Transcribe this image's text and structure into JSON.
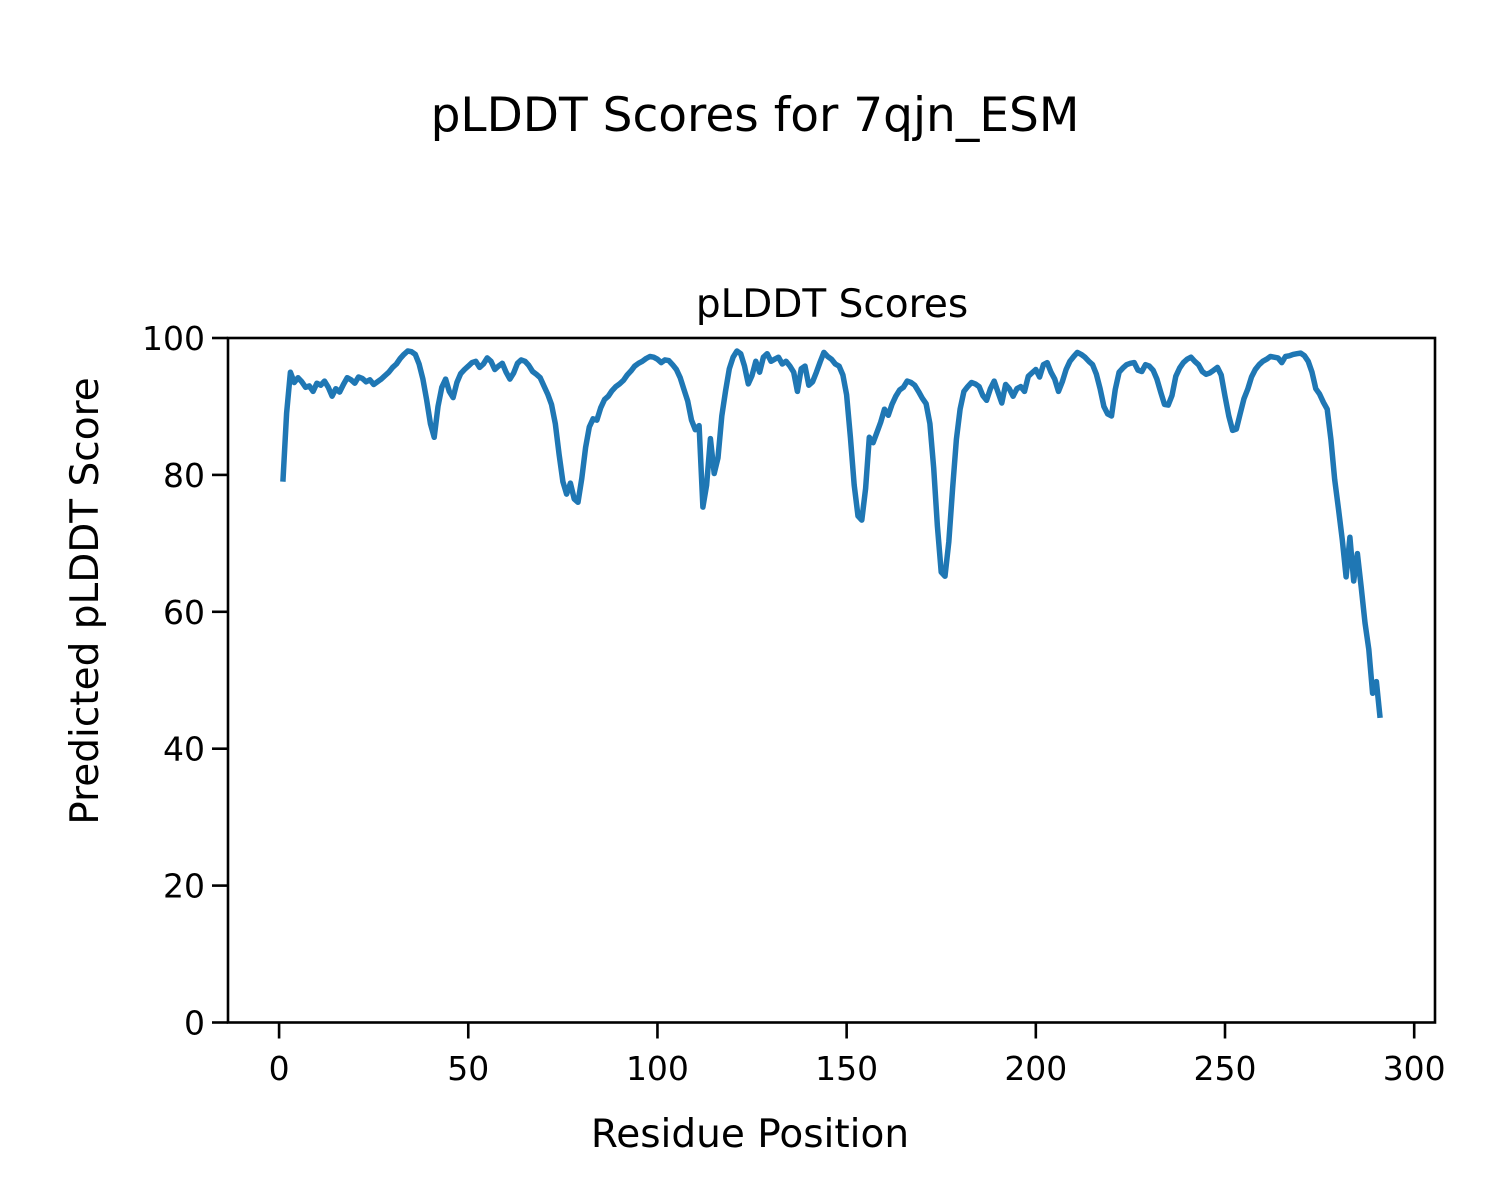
{
  "figure": {
    "suptitle": "pLDDT Scores for 7qjn_ESM",
    "background": "#ffffff",
    "text_color": "#000000",
    "spine_color": "#000000"
  },
  "chart_data": {
    "type": "line",
    "suptitle": "pLDDT Scores for 7qjn_ESM",
    "title": "pLDDT Scores",
    "xlabel": "Residue Position",
    "ylabel": "Predicted pLDDT Score",
    "xlim": [
      -13.5,
      305.5
    ],
    "ylim": [
      0,
      100
    ],
    "xticks": [
      0,
      50,
      100,
      150,
      200,
      250,
      300
    ],
    "yticks": [
      0,
      20,
      40,
      60,
      80,
      100
    ],
    "grid": false,
    "legend": null,
    "series": [
      {
        "name": "pLDDT",
        "color": "#1f77b4",
        "x_start": 1,
        "values": [
          79.0,
          89.0,
          95.0,
          93.5,
          94.2,
          93.6,
          92.8,
          93.0,
          92.2,
          93.4,
          93.1,
          93.7,
          92.8,
          91.5,
          92.6,
          92.1,
          93.2,
          94.2,
          93.9,
          93.4,
          94.3,
          94.1,
          93.6,
          93.9,
          93.2,
          93.6,
          94.0,
          94.5,
          95.0,
          95.7,
          96.2,
          97.0,
          97.6,
          98.1,
          98.0,
          97.6,
          96.2,
          94.0,
          91.0,
          87.5,
          85.5,
          90.0,
          92.8,
          94.0,
          92.2,
          91.3,
          93.5,
          94.8,
          95.4,
          95.9,
          96.4,
          96.6,
          95.7,
          96.2,
          97.1,
          96.6,
          95.4,
          95.9,
          96.3,
          95.0,
          94.0,
          94.9,
          96.3,
          96.8,
          96.6,
          96.0,
          95.1,
          94.7,
          94.2,
          93.0,
          91.8,
          90.3,
          87.5,
          83.0,
          79.0,
          77.2,
          78.8,
          76.5,
          76.0,
          79.5,
          84.0,
          87.0,
          88.2,
          88.0,
          89.8,
          91.0,
          91.5,
          92.3,
          92.9,
          93.3,
          93.8,
          94.6,
          95.2,
          95.9,
          96.3,
          96.6,
          97.0,
          97.3,
          97.2,
          96.9,
          96.4,
          96.8,
          96.7,
          96.1,
          95.4,
          94.2,
          92.5,
          90.8,
          88.0,
          86.6,
          87.2,
          75.3,
          78.5,
          85.3,
          80.2,
          82.5,
          88.6,
          92.3,
          95.5,
          97.2,
          98.1,
          97.7,
          95.9,
          93.3,
          94.5,
          96.6,
          95.0,
          97.2,
          97.7,
          96.6,
          96.9,
          97.2,
          96.2,
          96.6,
          95.9,
          95.0,
          92.2,
          95.5,
          95.9,
          93.1,
          93.6,
          95.0,
          96.5,
          97.9,
          97.3,
          96.9,
          96.2,
          95.9,
          94.6,
          91.7,
          85.5,
          78.5,
          74.0,
          73.4,
          78.0,
          85.5,
          84.7,
          86.2,
          87.7,
          89.6,
          88.7,
          90.3,
          91.5,
          92.4,
          92.8,
          93.7,
          93.5,
          93.1,
          92.2,
          91.2,
          90.4,
          87.5,
          81.0,
          72.5,
          65.8,
          65.2,
          70.2,
          78.0,
          85.2,
          89.6,
          92.2,
          92.9,
          93.5,
          93.3,
          92.9,
          91.6,
          90.9,
          92.6,
          93.7,
          92.1,
          90.5,
          93.2,
          92.6,
          91.5,
          92.6,
          92.9,
          92.2,
          94.4,
          94.9,
          95.4,
          94.3,
          96.1,
          96.4,
          95.0,
          94.0,
          92.2,
          93.6,
          95.4,
          96.6,
          97.3,
          97.9,
          97.6,
          97.2,
          96.6,
          96.1,
          94.7,
          92.6,
          90.0,
          88.9,
          88.6,
          92.5,
          95.0,
          95.6,
          96.1,
          96.3,
          96.4,
          95.3,
          95.1,
          96.1,
          95.9,
          95.3,
          94.0,
          92.1,
          90.3,
          90.2,
          91.6,
          94.4,
          95.6,
          96.4,
          96.9,
          97.2,
          96.6,
          96.1,
          95.1,
          94.7,
          94.9,
          95.3,
          95.7,
          94.6,
          91.5,
          88.6,
          86.5,
          86.7,
          88.9,
          91.1,
          92.5,
          94.3,
          95.4,
          96.1,
          96.6,
          96.9,
          97.3,
          97.2,
          97.1,
          96.4,
          97.3,
          97.4,
          97.6,
          97.7,
          97.8,
          97.4,
          96.6,
          95.0,
          92.6,
          91.8,
          90.6,
          89.6,
          85.2,
          79.3,
          75.0,
          70.5,
          65.1,
          70.9,
          64.5,
          68.5,
          63.6,
          58.4,
          54.5,
          48.1,
          49.8,
          44.5
        ]
      }
    ]
  }
}
